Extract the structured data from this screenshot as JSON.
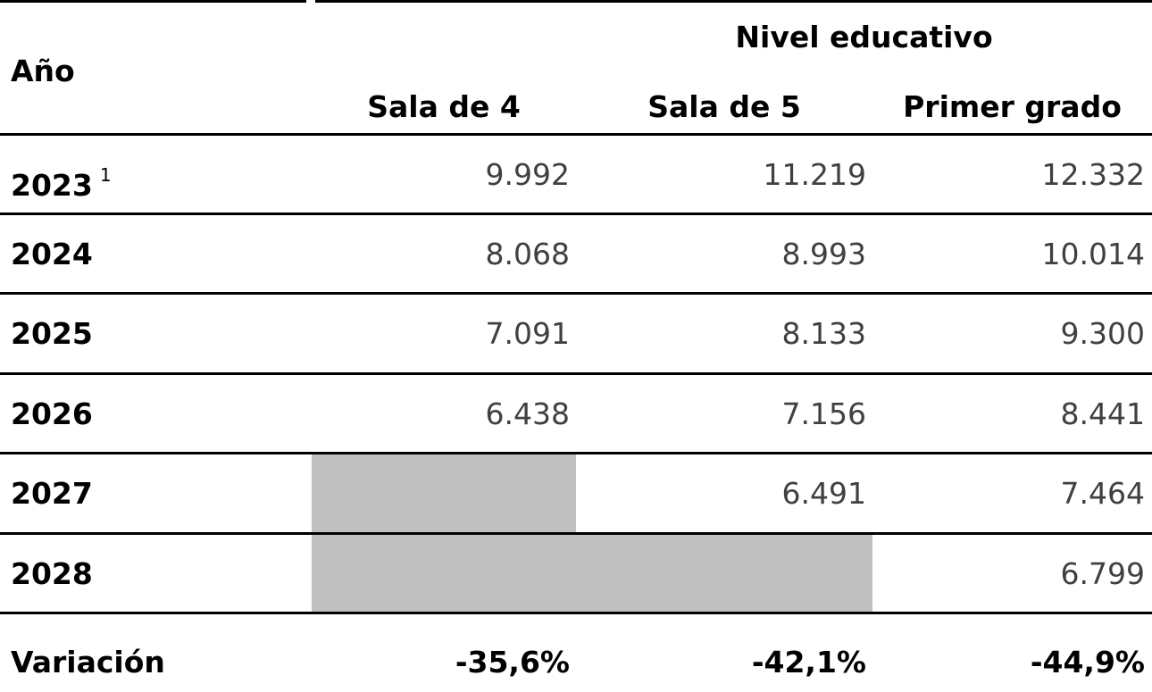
{
  "header": {
    "year_label": "Año",
    "group": "Nivel educativo",
    "columns": [
      "Sala de 4",
      "Sala de 5",
      "Primer grado"
    ]
  },
  "table": {
    "rows": [
      {
        "year": "2023",
        "footnote": "1",
        "values": [
          "9.992",
          "11.219",
          "12.332"
        ]
      },
      {
        "year": "2024",
        "values": [
          "8.068",
          "8.993",
          "10.014"
        ]
      },
      {
        "year": "2025",
        "values": [
          "7.091",
          "8.133",
          "9.300"
        ]
      },
      {
        "year": "2026",
        "values": [
          "6.438",
          "7.156",
          "8.441"
        ]
      },
      {
        "year": "2027",
        "values": [
          null,
          "6.491",
          "7.464"
        ]
      },
      {
        "year": "2028",
        "values": [
          null,
          null,
          "6.799"
        ]
      }
    ],
    "variation": {
      "label": "Variación",
      "values": [
        "-35,6%",
        "-42,1%",
        "-44,9%"
      ]
    }
  }
}
